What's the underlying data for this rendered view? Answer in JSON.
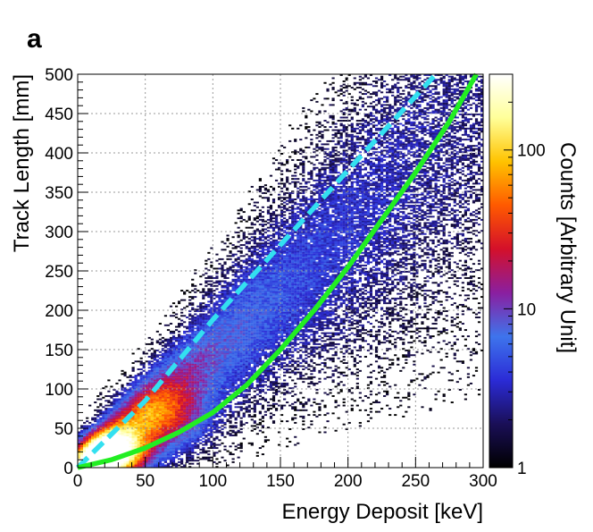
{
  "panel_label": "a",
  "chart_data": {
    "type": "heatmap",
    "title": "",
    "xlabel": "Energy Deposit [keV]",
    "ylabel": "Track Length [mm]",
    "colorbar_label": "Counts [Arbitrary Unit]",
    "xlim": [
      0,
      300
    ],
    "ylim": [
      0,
      500
    ],
    "x_ticks": [
      "0",
      "50",
      "100",
      "150",
      "200",
      "250",
      "300"
    ],
    "y_ticks": [
      "0",
      "50",
      "100",
      "150",
      "200",
      "250",
      "300",
      "350",
      "400",
      "450",
      "500"
    ],
    "colorbar": {
      "scale": "log",
      "range": [
        1,
        300
      ],
      "tick_labels": [
        {
          "value": 1,
          "label": "1"
        },
        {
          "value": 10,
          "label": "10"
        },
        {
          "value": 100,
          "label": "100"
        }
      ],
      "colormap": [
        "#000000",
        "#1a0f57",
        "#2b2bd6",
        "#3e74ec",
        "#8a1fa0",
        "#d4102a",
        "#ff5a00",
        "#ffc300",
        "#ffff99",
        "#ffffff"
      ]
    },
    "grid": true,
    "density_peak": {
      "x": 25,
      "y": 15
    },
    "series": [
      {
        "style": "dashed",
        "color": "#33e0f0",
        "x": [
          0,
          50,
          100,
          150,
          200,
          265
        ],
        "y": [
          0,
          85,
          188,
          283,
          378,
          500
        ]
      },
      {
        "style": "solid",
        "color": "#22ee22",
        "x": [
          0,
          25,
          50,
          75,
          100,
          125,
          150,
          175,
          200,
          225,
          250,
          275,
          295
        ],
        "y": [
          0,
          10,
          25,
          45,
          70,
          105,
          150,
          200,
          255,
          315,
          375,
          440,
          500
        ]
      }
    ]
  }
}
